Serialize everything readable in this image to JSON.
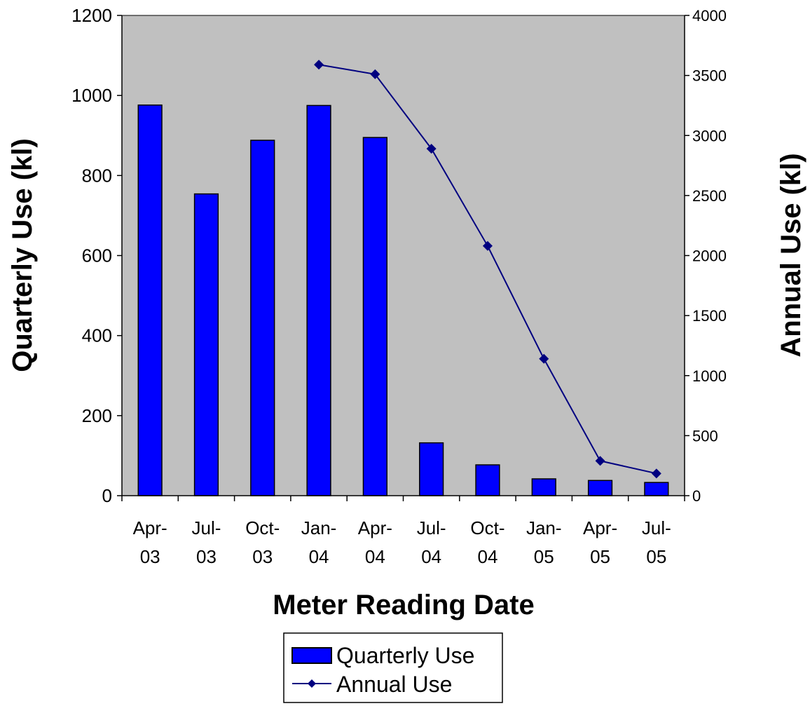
{
  "chart_data": {
    "type": "bar",
    "categories": [
      [
        "Apr-",
        "03"
      ],
      [
        "Jul-",
        "03"
      ],
      [
        "Oct-",
        "03"
      ],
      [
        "Jan-",
        "04"
      ],
      [
        "Apr-",
        "04"
      ],
      [
        "Jul-",
        "04"
      ],
      [
        "Oct-",
        "04"
      ],
      [
        "Jan-",
        "05"
      ],
      [
        "Apr-",
        "05"
      ],
      [
        "Jul-",
        "05"
      ]
    ],
    "series": [
      {
        "name": "Quarterly Use",
        "type": "bar",
        "axis": "left",
        "values": [
          976,
          754,
          888,
          975,
          895,
          132,
          77,
          42,
          38,
          33
        ],
        "color": "#0000ff"
      },
      {
        "name": "Annual Use",
        "type": "line",
        "axis": "right",
        "values": [
          null,
          null,
          null,
          3590,
          3510,
          2890,
          2080,
          1140,
          290,
          185
        ],
        "color": "#000080"
      }
    ],
    "xlabel": "Meter Reading Date",
    "ylabel": "Quarterly Use (kl)",
    "y2label": "Annual Use (kl)",
    "ylim": [
      0,
      1200
    ],
    "y2lim": [
      0,
      4000
    ],
    "yticks": [
      "0",
      "200",
      "400",
      "600",
      "800",
      "1000",
      "1200"
    ],
    "y2ticks": [
      "0",
      "500",
      "1000",
      "1500",
      "2000",
      "2500",
      "3000",
      "3500",
      "4000"
    ],
    "plot_background": "#c0c0c0",
    "grid": false,
    "legend_position": "bottom"
  }
}
